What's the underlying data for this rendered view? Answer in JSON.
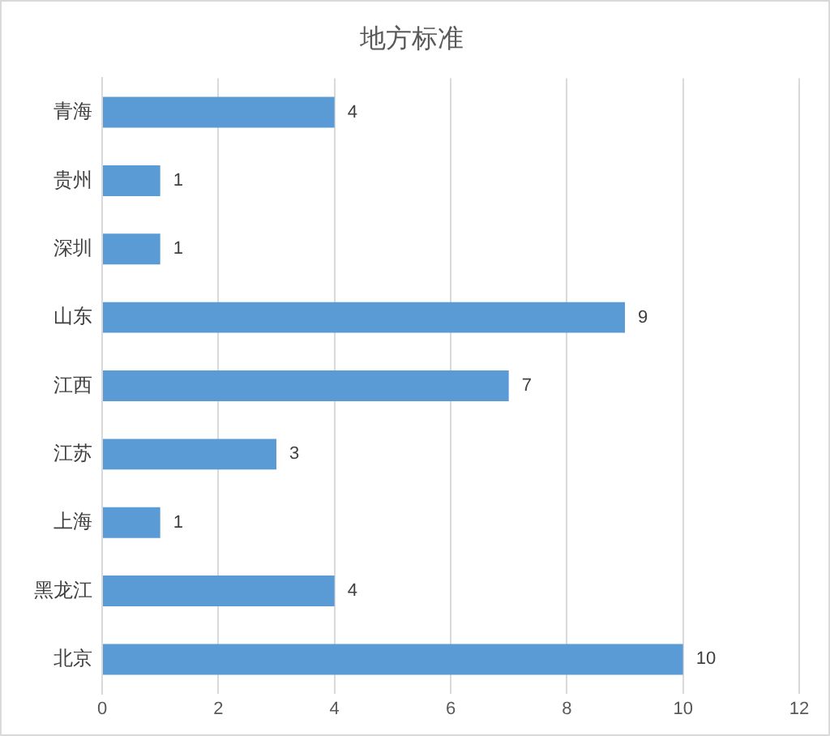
{
  "chart_data": {
    "type": "bar",
    "title": "地方标准",
    "orientation": "horizontal",
    "categories": [
      "青海",
      "贵州",
      "深圳",
      "山东",
      "江西",
      "江苏",
      "上海",
      "黑龙江",
      "北京"
    ],
    "values": [
      4,
      1,
      1,
      9,
      7,
      3,
      1,
      4,
      10
    ],
    "color": "#5b9bd5",
    "xlim": [
      0,
      12
    ],
    "xticks": [
      0,
      2,
      4,
      6,
      8,
      10,
      12
    ],
    "grid": "x",
    "data_labels": true,
    "legend": false
  }
}
